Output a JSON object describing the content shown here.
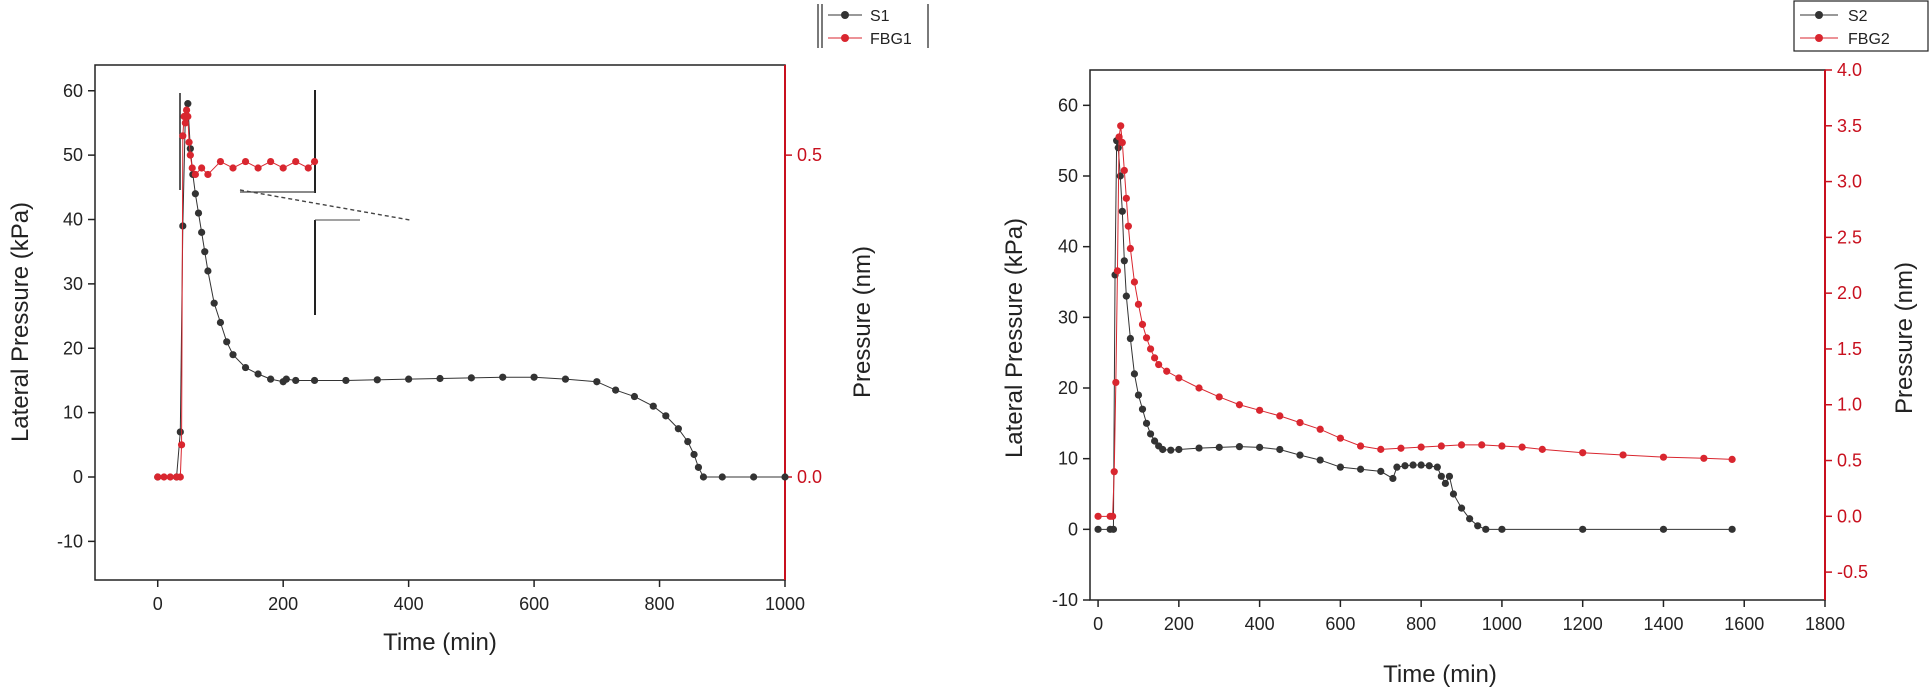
{
  "colors": {
    "s_series": "#333333",
    "fbg_series": "#d9262f",
    "right_axis": "#c8101e",
    "axis": "#222222"
  },
  "chart_data": [
    {
      "type": "scatter",
      "xlabel": "Time (min)",
      "ylabel_left": "Lateral Pressure (kPa)",
      "ylabel_right": "Pressure (nm)",
      "xlim": [
        -100,
        1000
      ],
      "ylim_left": [
        -16,
        64
      ],
      "ylim_right": [
        -0.16,
        0.64
      ],
      "x_ticks": [
        "0",
        "200",
        "400",
        "600",
        "800",
        "1000"
      ],
      "y_left_ticks": [
        "-10",
        "0",
        "10",
        "20",
        "30",
        "40",
        "50",
        "60"
      ],
      "y_right_ticks": [
        "0.0",
        "0.5"
      ],
      "legend": {
        "position": "top-right",
        "entries": [
          "S1",
          "FBG1"
        ]
      },
      "series": [
        {
          "name": "S1",
          "axis": "left",
          "x": [
            0,
            30,
            36,
            40,
            44,
            48,
            52,
            56,
            60,
            65,
            70,
            75,
            80,
            90,
            100,
            110,
            120,
            140,
            160,
            180,
            200,
            205,
            220,
            250,
            300,
            350,
            400,
            450,
            500,
            550,
            600,
            650,
            700,
            730,
            760,
            790,
            810,
            830,
            845,
            855,
            862,
            870,
            900,
            950,
            1000
          ],
          "values": [
            0,
            0,
            7,
            39,
            56,
            58,
            51,
            47,
            44,
            41,
            38,
            35,
            32,
            27,
            24,
            21,
            19,
            17,
            16,
            15.2,
            14.8,
            15.2,
            15,
            15,
            15,
            15.1,
            15.2,
            15.3,
            15.4,
            15.5,
            15.5,
            15.2,
            14.8,
            13.5,
            12.5,
            11,
            9.5,
            7.5,
            5.5,
            3.5,
            1.5,
            0,
            0,
            0,
            0
          ]
        },
        {
          "name": "FBG1",
          "axis": "right",
          "x": [
            0,
            10,
            20,
            30,
            36,
            38,
            40,
            42,
            44,
            46,
            48,
            50,
            52,
            55,
            60,
            70,
            80,
            100,
            120,
            140,
            160,
            180,
            200,
            220,
            240,
            250
          ],
          "values": [
            0,
            0,
            0,
            0,
            0,
            0.05,
            0.53,
            0.56,
            0.55,
            0.57,
            0.56,
            0.52,
            0.5,
            0.48,
            0.47,
            0.48,
            0.47,
            0.49,
            0.48,
            0.49,
            0.48,
            0.49,
            0.48,
            0.49,
            0.48,
            0.49
          ]
        }
      ]
    },
    {
      "type": "scatter",
      "xlabel": "Time (min)",
      "ylabel_left": "Lateral Pressure (kPa)",
      "ylabel_right": "Pressure (nm)",
      "xlim": [
        -20,
        1800
      ],
      "ylim_left": [
        -10,
        65
      ],
      "ylim_right": [
        -0.75,
        4.0
      ],
      "x_ticks": [
        "0",
        "200",
        "400",
        "600",
        "800",
        "1000",
        "1200",
        "1400",
        "1600",
        "1800"
      ],
      "y_left_ticks": [
        "-10",
        "0",
        "10",
        "20",
        "30",
        "40",
        "50",
        "60"
      ],
      "y_right_ticks": [
        "-0.5",
        "0.0",
        "0.5",
        "1.0",
        "1.5",
        "2.0",
        "2.5",
        "3.0",
        "3.5",
        "4.0"
      ],
      "legend": {
        "position": "top-right",
        "entries": [
          "S2",
          "FBG2"
        ]
      },
      "series": [
        {
          "name": "S2",
          "axis": "left",
          "x": [
            0,
            30,
            38,
            42,
            46,
            50,
            55,
            60,
            65,
            70,
            80,
            90,
            100,
            110,
            120,
            130,
            140,
            150,
            160,
            180,
            200,
            250,
            300,
            350,
            400,
            450,
            500,
            550,
            600,
            650,
            700,
            730,
            740,
            760,
            780,
            800,
            820,
            840,
            850,
            860,
            870,
            880,
            900,
            920,
            940,
            960,
            1000,
            1200,
            1400,
            1570
          ],
          "values": [
            0,
            0,
            0,
            36,
            55,
            54,
            50,
            45,
            38,
            33,
            27,
            22,
            19,
            17,
            15,
            13.5,
            12.5,
            11.8,
            11.3,
            11.2,
            11.3,
            11.5,
            11.6,
            11.7,
            11.6,
            11.3,
            10.5,
            9.8,
            8.8,
            8.5,
            8.2,
            7.2,
            8.8,
            9,
            9.1,
            9.1,
            9,
            8.8,
            7.5,
            6.5,
            7.5,
            5,
            3,
            1.5,
            0.5,
            0,
            0,
            0,
            0,
            0
          ]
        },
        {
          "name": "FBG2",
          "axis": "right",
          "x": [
            0,
            30,
            36,
            40,
            44,
            48,
            52,
            56,
            60,
            65,
            70,
            75,
            80,
            90,
            100,
            110,
            120,
            130,
            140,
            150,
            170,
            200,
            250,
            300,
            350,
            400,
            450,
            500,
            550,
            600,
            650,
            700,
            750,
            800,
            850,
            900,
            950,
            1000,
            1050,
            1100,
            1200,
            1300,
            1400,
            1500,
            1570
          ],
          "values": [
            0,
            0,
            0,
            0.4,
            1.2,
            2.2,
            3.4,
            3.5,
            3.35,
            3.1,
            2.85,
            2.6,
            2.4,
            2.1,
            1.9,
            1.72,
            1.6,
            1.5,
            1.42,
            1.36,
            1.3,
            1.24,
            1.15,
            1.07,
            1.0,
            0.95,
            0.9,
            0.84,
            0.78,
            0.7,
            0.63,
            0.6,
            0.61,
            0.62,
            0.63,
            0.64,
            0.64,
            0.63,
            0.62,
            0.6,
            0.57,
            0.55,
            0.53,
            0.52,
            0.51
          ]
        }
      ]
    }
  ]
}
